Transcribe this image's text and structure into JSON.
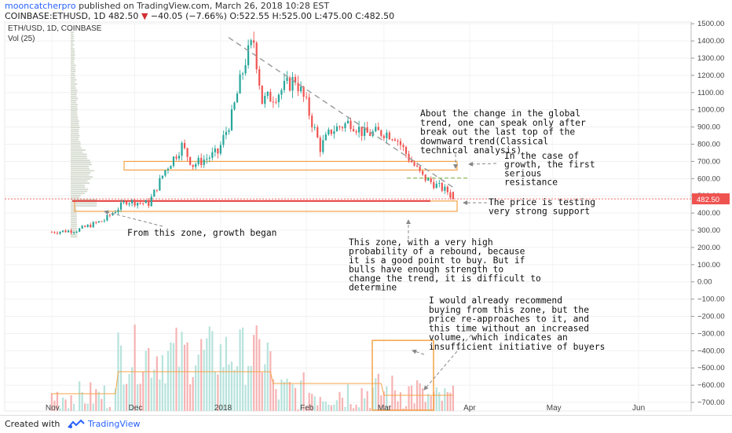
{
  "header": {
    "author": "mooncatcherpro",
    "published_text": "published on TradingView.com, March 26, 2018 10:28 EST",
    "symbol": "COINBASE:ETHUSD, 1D",
    "last": "482.50",
    "change": "−40.05 (−7.66%)",
    "ohlc": "O:522.55 H:525.00 L:475.00 C:482.50"
  },
  "legend": {
    "title": "ETH/USD, 1D, COINBASE",
    "volume": "Vol (25)"
  },
  "footer": {
    "created_with": "Created with",
    "brand": "TradingView"
  },
  "chart_data": {
    "type": "candlestick",
    "instrument": "ETH/USD, 1D, COINBASE",
    "volume_indicator": "Vol (25)",
    "price_label": "482.50",
    "y_axis_ticks": [
      "1500.00",
      "1400.00",
      "1300.00",
      "1200.00",
      "1100.00",
      "1000.00",
      "900.00",
      "800.00",
      "700.00",
      "600.00",
      "500.00",
      "400.00",
      "300.00",
      "200.00",
      "100.00",
      "0.00",
      "−100.00",
      "−200.00",
      "−300.00",
      "−400.00",
      "−500.00",
      "−600.00",
      "−700.00"
    ],
    "x_axis_ticks": [
      "Nov",
      "Dec",
      "2018",
      "Feb",
      "Mar",
      "Apr",
      "May",
      "Jun"
    ],
    "ylim": [
      -750,
      1510
    ],
    "price_series": [
      {
        "date": "2017-11-01",
        "close": 290
      },
      {
        "date": "2017-11-10",
        "close": 300
      },
      {
        "date": "2017-11-20",
        "close": 360
      },
      {
        "date": "2017-11-28",
        "close": 470
      },
      {
        "date": "2017-12-06",
        "close": 455
      },
      {
        "date": "2017-12-12",
        "close": 650
      },
      {
        "date": "2017-12-18",
        "close": 790
      },
      {
        "date": "2017-12-22",
        "close": 680
      },
      {
        "date": "2017-12-31",
        "close": 750
      },
      {
        "date": "2018-01-05",
        "close": 960
      },
      {
        "date": "2018-01-10",
        "close": 1290
      },
      {
        "date": "2018-01-13",
        "close": 1400
      },
      {
        "date": "2018-01-16",
        "close": 1050
      },
      {
        "date": "2018-01-21",
        "close": 1090
      },
      {
        "date": "2018-01-28",
        "close": 1180
      },
      {
        "date": "2018-02-01",
        "close": 1030
      },
      {
        "date": "2018-02-06",
        "close": 780
      },
      {
        "date": "2018-02-10",
        "close": 880
      },
      {
        "date": "2018-02-17",
        "close": 930
      },
      {
        "date": "2018-02-22",
        "close": 860
      },
      {
        "date": "2018-03-01",
        "close": 870
      },
      {
        "date": "2018-03-05",
        "close": 850
      },
      {
        "date": "2018-03-10",
        "close": 720
      },
      {
        "date": "2018-03-15",
        "close": 610
      },
      {
        "date": "2018-03-20",
        "close": 560
      },
      {
        "date": "2018-03-24",
        "close": 525
      },
      {
        "date": "2018-03-26",
        "close": 482.5
      }
    ],
    "resistance_zone": [
      650,
      700
    ],
    "support_zone": [
      410,
      470
    ],
    "annotations": {
      "global_trend": [
        "About the change in the global",
        "trend, one can speak only after",
        "break out the last top of the",
        "downward trend(Classical",
        "technical analysis)"
      ],
      "resistance": [
        "In the case of",
        "growth, the first",
        "serious",
        "resistance"
      ],
      "support": [
        "The price is testing",
        "very strong support"
      ],
      "growth": [
        "From this zone, growth began"
      ],
      "rebound": [
        "This zone, with a very high",
        "probability of a rebound, because",
        "it is a good point to buy. But if",
        "bulls have enough strength to",
        "change the trend, it is difficult to",
        "determine"
      ],
      "volume": [
        "I would already recommend",
        "buying from this zone, but the",
        "price re-approaches to it, and",
        "this time without an increased",
        "volume, which indicates an",
        "insufficient initiative of buyers"
      ]
    },
    "colors": {
      "up": "#26a69a",
      "down": "#ef5350",
      "zone": "#f5a348",
      "support_line": "#e53935",
      "trend": "#999999",
      "label_bg": "#ef5350"
    }
  }
}
